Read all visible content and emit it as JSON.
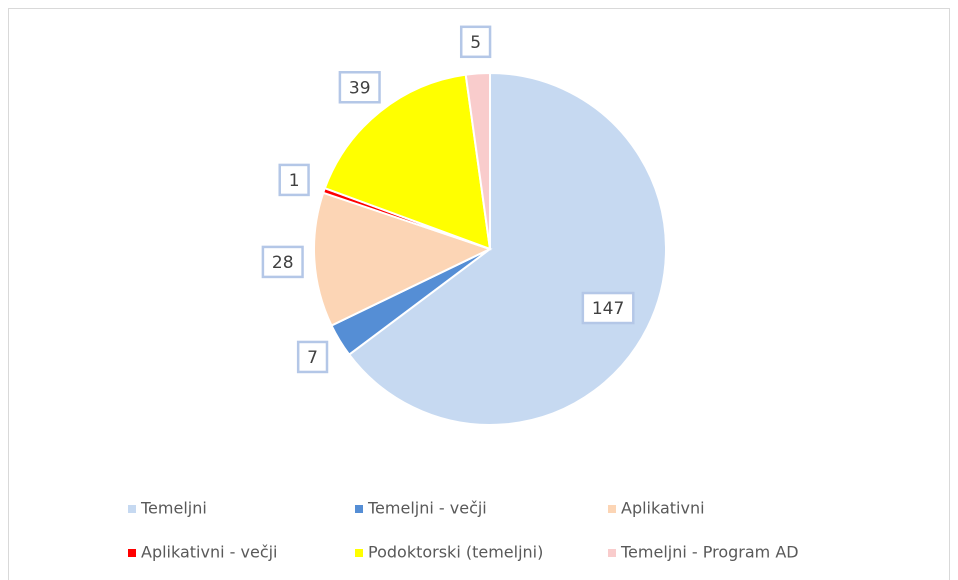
{
  "chart_data": {
    "type": "pie",
    "categories": [
      "Temeljni",
      "Temeljni - večji",
      "Aplikativni",
      "Aplikativni - večji",
      "Podoktorski (temeljni)",
      "Temeljni - Program AD"
    ],
    "values": [
      147,
      7,
      28,
      1,
      39,
      5
    ],
    "colors": [
      "#c6d9f1",
      "#558ed5",
      "#fcd5b5",
      "#ff0000",
      "#ffff00",
      "#f9cccc"
    ],
    "legend": "bottom"
  }
}
